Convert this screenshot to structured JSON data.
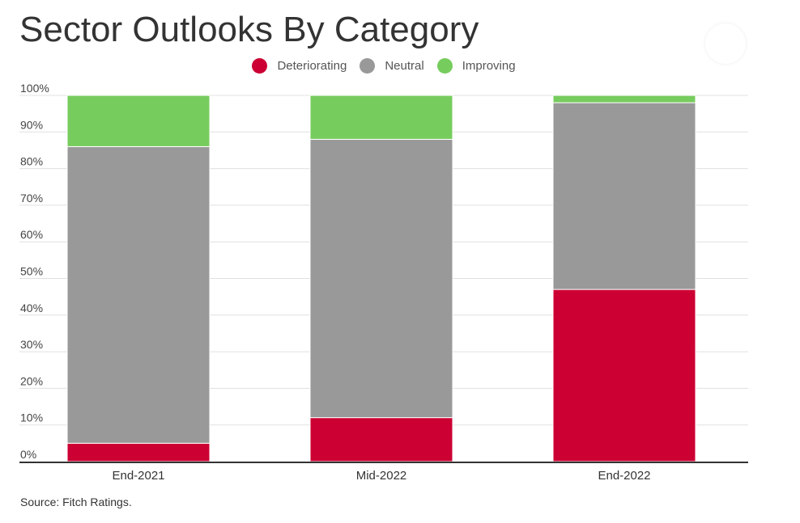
{
  "chart_data": {
    "type": "bar",
    "stacked": true,
    "title": "Sector Outlooks By Category",
    "categories": [
      "End-2021",
      "Mid-2022",
      "End-2022"
    ],
    "series": [
      {
        "name": "Deteriorating",
        "color": "#cc0033",
        "values": [
          5,
          12,
          47
        ]
      },
      {
        "name": "Neutral",
        "color": "#999999",
        "values": [
          81,
          76,
          51
        ]
      },
      {
        "name": "Improving",
        "color": "#77cc5e",
        "values": [
          14,
          12,
          2
        ]
      }
    ],
    "ylim": [
      0,
      100
    ],
    "yticks": [
      "0%",
      "10%",
      "20%",
      "30%",
      "40%",
      "50%",
      "60%",
      "70%",
      "80%",
      "90%",
      "100%"
    ],
    "grid": true,
    "legend_position": "top-center"
  },
  "source": "Source: Fitch Ratings."
}
